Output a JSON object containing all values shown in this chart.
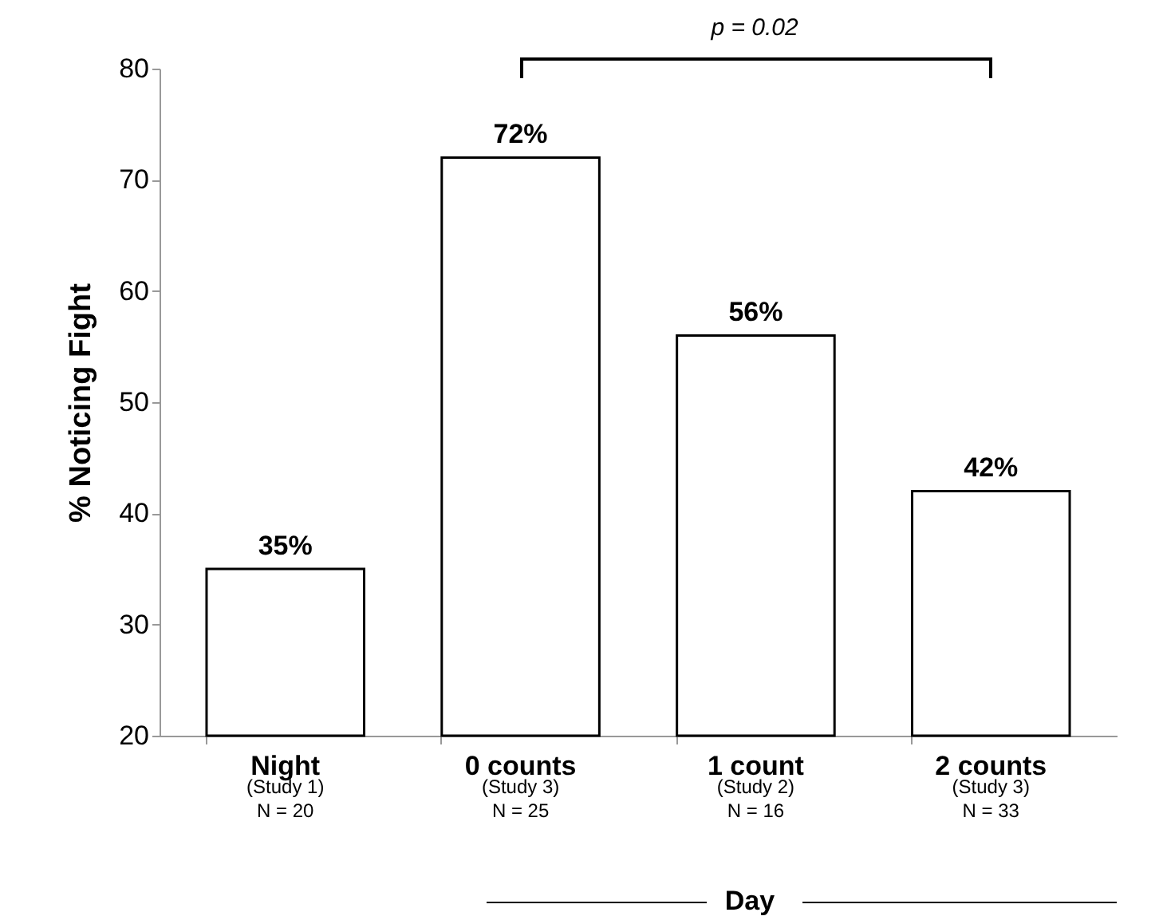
{
  "chart_data": {
    "type": "bar",
    "categories": [
      "Night\n(Study 1)\nN = 20",
      "0 counts\n(Study 3)\nN = 25",
      "1 count\n(Study 2)\nN = 16",
      "2 counts\n(Study 3)\nN = 33"
    ],
    "values": [
      35,
      72,
      56,
      42
    ],
    "color": "#ffffff",
    "value_labels": [
      "35%",
      "72%",
      "56%",
      "42%"
    ],
    "ylabel": "% Noticing Fight",
    "ylim": [
      20,
      80
    ],
    "yticks": [
      20,
      30,
      40,
      50,
      60,
      70,
      80
    ],
    "annotations": [
      "p = 0.02",
      "Day"
    ],
    "grid": false
  }
}
